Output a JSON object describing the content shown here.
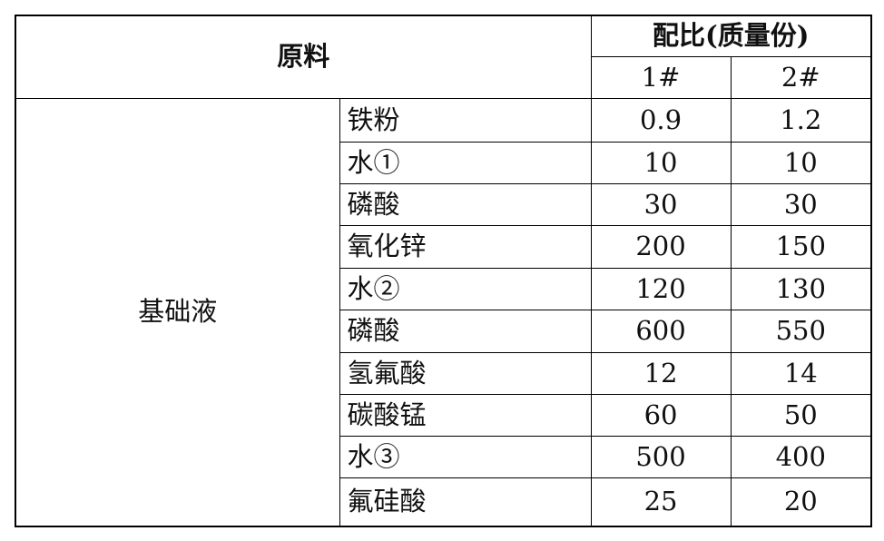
{
  "header": {
    "material": "原料",
    "ratio": "配比(质量份)",
    "formulas": [
      "1#",
      "2#"
    ]
  },
  "group": "基础液",
  "rows": [
    {
      "name": "铁粉",
      "v1": "0.9",
      "v2": "1.2"
    },
    {
      "name": "水①",
      "v1": "10",
      "v2": "10"
    },
    {
      "name": "磷酸",
      "v1": "30",
      "v2": "30"
    },
    {
      "name": "氧化锌",
      "v1": "200",
      "v2": "150"
    },
    {
      "name": "水②",
      "v1": "120",
      "v2": "130"
    },
    {
      "name": "磷酸",
      "v1": "600",
      "v2": "550"
    },
    {
      "name": "氢氟酸",
      "v1": "12",
      "v2": "14"
    },
    {
      "name": "碳酸锰",
      "v1": "60",
      "v2": "50"
    },
    {
      "name": "水③",
      "v1": "500",
      "v2": "400"
    },
    {
      "name": "氟硅酸",
      "v1": "25",
      "v2": "20"
    }
  ]
}
